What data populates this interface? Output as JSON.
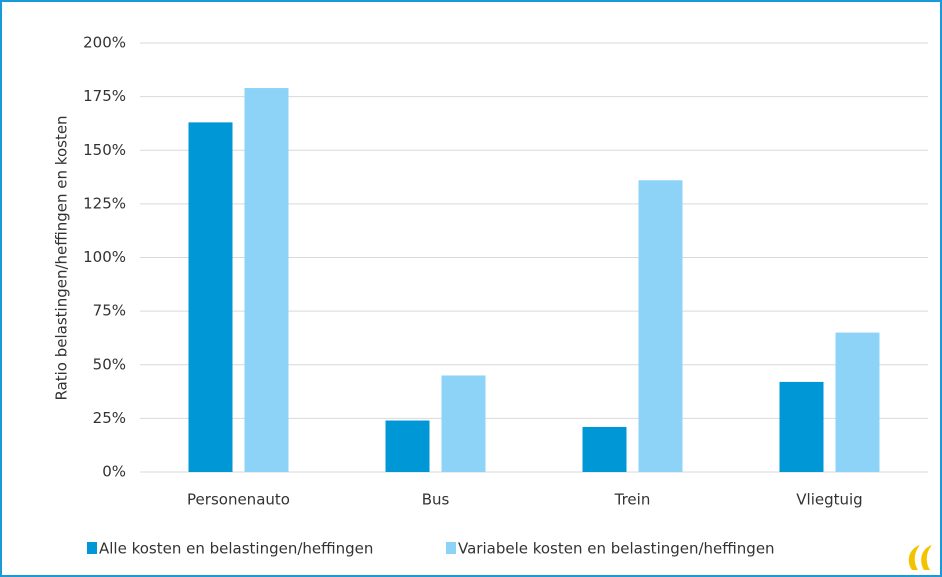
{
  "chart_data": {
    "type": "bar",
    "y_label": "Ratio belastingen/heffingen en kosten",
    "categories": [
      "Personenauto",
      "Bus",
      "Trein",
      "Vliegtuig"
    ],
    "series": [
      {
        "name": "Alle kosten en belastingen/heffingen",
        "color": "#0097d6",
        "values": [
          163,
          24,
          21,
          42
        ]
      },
      {
        "name": "Variabele kosten en belastingen/heffingen",
        "color": "#8dd3f8",
        "values": [
          179,
          45,
          136,
          65
        ]
      }
    ],
    "ylim": [
      0,
      200
    ],
    "yticks": [
      {
        "value": 0,
        "label": "0%"
      },
      {
        "value": 25,
        "label": "25%"
      },
      {
        "value": 50,
        "label": "50%"
      },
      {
        "value": 75,
        "label": "75%"
      },
      {
        "value": 100,
        "label": "100%"
      },
      {
        "value": 125,
        "label": "125%"
      },
      {
        "value": 150,
        "label": "150%"
      },
      {
        "value": 175,
        "label": "175%"
      },
      {
        "value": 200,
        "label": "200%"
      }
    ],
    "grid": true,
    "legend": "bottom"
  }
}
